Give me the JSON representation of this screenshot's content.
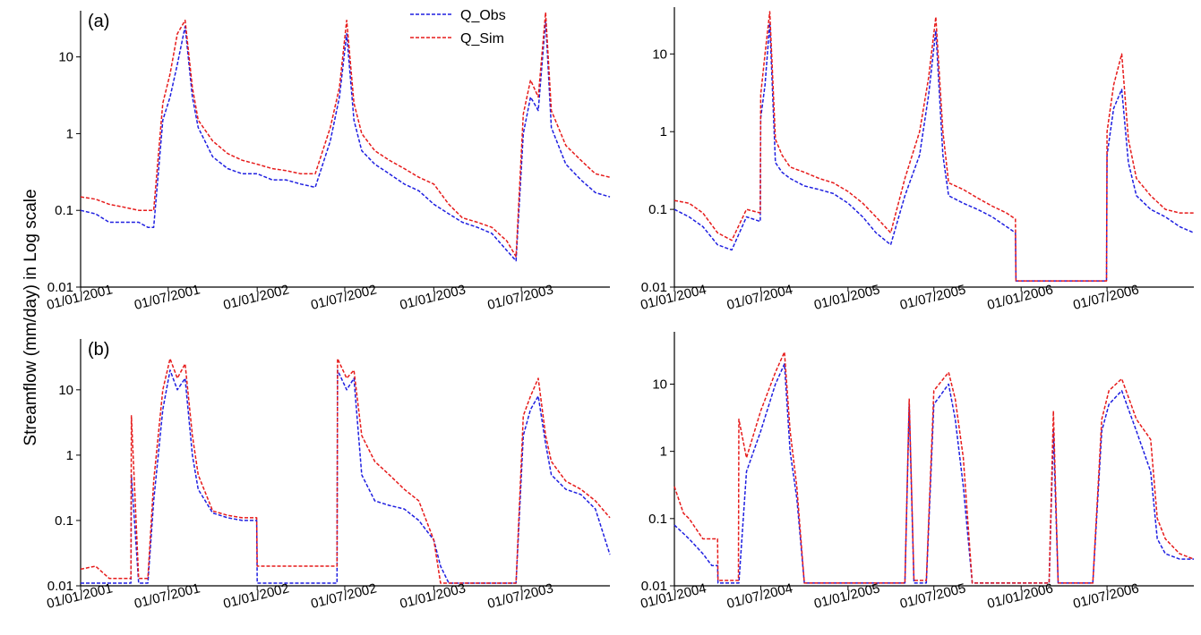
{
  "figure": {
    "ylabel": "Streamflow (mm/day) in Log scale",
    "legend": {
      "placement": "top-center",
      "entries": [
        {
          "name": "Q_Obs",
          "color": "#1f1fe0"
        },
        {
          "name": "Q_Sim",
          "color": "#e61b1b"
        }
      ]
    }
  },
  "chart_data": [
    {
      "type": "line",
      "panel_label": "(a)",
      "yscale": "log",
      "ylim": [
        0.01,
        40
      ],
      "yticks": [
        "0.01",
        "0.1",
        "1",
        "10"
      ],
      "xlim": [
        "2001-01-01",
        "2003-12-31"
      ],
      "xticks": [
        "01/01/2001",
        "01/07/2001",
        "01/01/2002",
        "01/07/2002",
        "01/01/2003",
        "01/07/2003"
      ],
      "x": [
        "2001-01-01",
        "2001-02-01",
        "2001-03-01",
        "2001-04-01",
        "2001-05-01",
        "2001-05-20",
        "2001-06-01",
        "2001-06-20",
        "2001-07-05",
        "2001-07-20",
        "2001-08-05",
        "2001-08-20",
        "2001-09-01",
        "2001-10-01",
        "2001-11-01",
        "2001-12-01",
        "2002-01-01",
        "2002-02-01",
        "2002-03-01",
        "2002-04-01",
        "2002-05-01",
        "2002-06-01",
        "2002-06-20",
        "2002-07-05",
        "2002-07-20",
        "2002-08-05",
        "2002-09-01",
        "2002-10-01",
        "2002-11-01",
        "2002-12-01",
        "2003-01-01",
        "2003-02-01",
        "2003-03-01",
        "2003-04-01",
        "2003-05-01",
        "2003-06-01",
        "2003-06-20",
        "2003-07-05",
        "2003-07-20",
        "2003-08-05",
        "2003-08-20",
        "2003-09-01",
        "2003-10-01",
        "2003-11-01",
        "2003-12-01",
        "2003-12-31"
      ],
      "series": [
        {
          "name": "Q_Obs",
          "values": [
            0.1,
            0.09,
            0.07,
            0.07,
            0.07,
            0.06,
            0.06,
            1.5,
            3,
            8,
            25,
            3,
            1.2,
            0.5,
            0.35,
            0.3,
            0.3,
            0.25,
            0.25,
            0.22,
            0.2,
            0.8,
            3,
            20,
            1.5,
            0.6,
            0.4,
            0.3,
            0.22,
            0.18,
            0.12,
            0.09,
            0.07,
            0.06,
            0.05,
            0.03,
            0.022,
            1,
            3,
            2,
            30,
            1.2,
            0.4,
            0.25,
            0.17,
            0.15
          ]
        },
        {
          "name": "Q_Sim",
          "values": [
            0.15,
            0.14,
            0.12,
            0.11,
            0.1,
            0.1,
            0.1,
            2.5,
            6,
            20,
            30,
            4,
            1.5,
            0.8,
            0.55,
            0.45,
            0.4,
            0.35,
            0.33,
            0.3,
            0.3,
            1.2,
            4,
            30,
            2.5,
            1.0,
            0.6,
            0.45,
            0.35,
            0.27,
            0.22,
            0.12,
            0.08,
            0.07,
            0.06,
            0.04,
            0.025,
            1.8,
            5,
            3,
            38,
            2.0,
            0.7,
            0.45,
            0.3,
            0.27
          ]
        }
      ]
    },
    {
      "type": "line",
      "yscale": "log",
      "ylim": [
        0.01,
        40
      ],
      "yticks": [
        "0.01",
        "0.1",
        "1",
        "10"
      ],
      "xlim": [
        "2004-01-01",
        "2006-12-31"
      ],
      "xticks": [
        "01/01/2004",
        "01/07/2004",
        "01/01/2005",
        "01/07/2005",
        "01/01/2006",
        "01/07/2006"
      ],
      "x": [
        "2004-01-01",
        "2004-02-01",
        "2004-03-01",
        "2004-04-01",
        "2004-05-01",
        "2004-06-01",
        "2004-06-30",
        "2004-07-01",
        "2004-07-10",
        "2004-07-20",
        "2004-08-01",
        "2004-08-15",
        "2004-09-01",
        "2004-10-01",
        "2004-11-01",
        "2004-12-01",
        "2005-01-01",
        "2005-02-01",
        "2005-03-01",
        "2005-04-01",
        "2005-05-01",
        "2005-06-01",
        "2005-06-20",
        "2005-07-05",
        "2005-07-20",
        "2005-08-01",
        "2005-09-01",
        "2005-10-01",
        "2005-11-01",
        "2005-12-01",
        "2005-12-20",
        "2005-12-21",
        "2006-06-30",
        "2006-07-01",
        "2006-07-15",
        "2006-08-01",
        "2006-08-15",
        "2006-09-01",
        "2006-10-01",
        "2006-11-01",
        "2006-12-01",
        "2006-12-31"
      ],
      "series": [
        {
          "name": "Q_Obs",
          "values": [
            0.1,
            0.08,
            0.06,
            0.035,
            0.03,
            0.08,
            0.07,
            1.5,
            4,
            25,
            0.4,
            0.3,
            0.25,
            0.2,
            0.18,
            0.16,
            0.12,
            0.08,
            0.05,
            0.035,
            0.15,
            0.5,
            3,
            20,
            0.5,
            0.15,
            0.12,
            0.1,
            0.08,
            0.06,
            0.05,
            0.012,
            0.012,
            0.5,
            2.0,
            3.5,
            0.4,
            0.15,
            0.1,
            0.08,
            0.06,
            0.05
          ]
        },
        {
          "name": "Q_Sim",
          "values": [
            0.13,
            0.12,
            0.09,
            0.05,
            0.04,
            0.1,
            0.09,
            3,
            10,
            35,
            0.8,
            0.5,
            0.35,
            0.3,
            0.25,
            0.22,
            0.17,
            0.12,
            0.08,
            0.05,
            0.25,
            1.0,
            5,
            30,
            1.0,
            0.22,
            0.18,
            0.14,
            0.11,
            0.09,
            0.075,
            0.012,
            0.012,
            1.0,
            4,
            10,
            0.8,
            0.25,
            0.15,
            0.1,
            0.09,
            0.09
          ]
        }
      ]
    },
    {
      "type": "line",
      "panel_label": "(b)",
      "yscale": "log",
      "ylim": [
        0.01,
        60
      ],
      "yticks": [
        "0.01",
        "0.1",
        "1",
        "10"
      ],
      "xlim": [
        "2001-01-01",
        "2003-12-31"
      ],
      "xticks": [
        "01/01/2001",
        "01/07/2001",
        "01/01/2002",
        "01/07/2002",
        "01/01/2003",
        "01/07/2003"
      ],
      "x": [
        "2001-01-01",
        "2001-02-01",
        "2001-03-01",
        "2001-04-01",
        "2001-04-15",
        "2001-04-16",
        "2001-05-01",
        "2001-05-20",
        "2001-06-01",
        "2001-06-20",
        "2001-07-05",
        "2001-07-20",
        "2001-08-05",
        "2001-08-20",
        "2001-09-01",
        "2001-10-01",
        "2001-11-01",
        "2001-12-01",
        "2001-12-31",
        "2002-01-01",
        "2002-03-01",
        "2002-06-15",
        "2002-06-16",
        "2002-07-05",
        "2002-07-20",
        "2002-08-05",
        "2002-09-01",
        "2002-10-01",
        "2002-11-01",
        "2002-12-01",
        "2003-01-01",
        "2003-01-15",
        "2003-02-01",
        "2003-06-20",
        "2003-07-05",
        "2003-07-20",
        "2003-08-05",
        "2003-08-20",
        "2003-09-01",
        "2003-10-01",
        "2003-11-01",
        "2003-12-01",
        "2003-12-31"
      ],
      "series": [
        {
          "name": "Q_Obs",
          "values": [
            0.011,
            0.011,
            0.011,
            0.011,
            0.011,
            0.5,
            0.011,
            0.011,
            0.2,
            5,
            20,
            10,
            15,
            1,
            0.3,
            0.13,
            0.11,
            0.1,
            0.1,
            0.011,
            0.011,
            0.011,
            20,
            10,
            15,
            0.5,
            0.2,
            0.17,
            0.15,
            0.1,
            0.05,
            0.02,
            0.011,
            0.011,
            2,
            5,
            8,
            1.5,
            0.5,
            0.3,
            0.25,
            0.15,
            0.03
          ]
        },
        {
          "name": "Q_Sim",
          "values": [
            0.018,
            0.02,
            0.013,
            0.013,
            0.013,
            4,
            0.013,
            0.013,
            0.4,
            10,
            30,
            15,
            25,
            2,
            0.5,
            0.14,
            0.12,
            0.11,
            0.11,
            0.02,
            0.02,
            0.02,
            30,
            15,
            20,
            2,
            0.8,
            0.5,
            0.3,
            0.2,
            0.05,
            0.011,
            0.011,
            0.011,
            4,
            8,
            15,
            2,
            0.8,
            0.4,
            0.3,
            0.2,
            0.11
          ]
        }
      ]
    },
    {
      "type": "line",
      "yscale": "log",
      "ylim": [
        0.01,
        60
      ],
      "yticks": [
        "0.01",
        "0.1",
        "1",
        "10"
      ],
      "xlim": [
        "2004-01-01",
        "2006-12-31"
      ],
      "xticks": [
        "01/01/2004",
        "01/07/2004",
        "01/01/2005",
        "01/07/2005",
        "01/01/2006",
        "01/07/2006"
      ],
      "x": [
        "2004-01-01",
        "2004-01-20",
        "2004-02-01",
        "2004-03-01",
        "2004-03-20",
        "2004-04-01",
        "2004-04-02",
        "2004-05-01",
        "2004-05-15",
        "2004-05-16",
        "2004-06-01",
        "2004-07-01",
        "2004-08-01",
        "2004-08-20",
        "2004-09-01",
        "2004-09-15",
        "2004-10-01",
        "2004-12-01",
        "2005-03-01",
        "2005-05-01",
        "2005-05-10",
        "2005-05-20",
        "2005-06-01",
        "2005-06-15",
        "2005-07-01",
        "2005-08-01",
        "2005-08-15",
        "2005-09-01",
        "2005-09-20",
        "2005-10-01",
        "2005-12-01",
        "2006-03-01",
        "2006-03-10",
        "2006-03-20",
        "2006-04-01",
        "2006-05-20",
        "2006-06-01",
        "2006-06-20",
        "2006-07-05",
        "2006-08-01",
        "2006-09-01",
        "2006-10-01",
        "2006-10-15",
        "2006-11-01",
        "2006-12-01",
        "2006-12-31"
      ],
      "series": [
        {
          "name": "Q_Obs",
          "values": [
            0.08,
            0.06,
            0.05,
            0.03,
            0.02,
            0.02,
            0.011,
            0.011,
            0.011,
            0.011,
            0.5,
            2,
            10,
            20,
            1,
            0.2,
            0.011,
            0.011,
            0.011,
            0.011,
            5,
            0.011,
            0.011,
            0.011,
            5,
            10,
            3,
            0.3,
            0.011,
            0.011,
            0.011,
            0.011,
            2,
            0.011,
            0.011,
            0.011,
            0.011,
            2,
            5,
            8,
            2,
            0.5,
            0.05,
            0.03,
            0.025,
            0.025
          ]
        },
        {
          "name": "Q_Sim",
          "values": [
            0.3,
            0.12,
            0.1,
            0.05,
            0.05,
            0.05,
            0.012,
            0.012,
            0.012,
            3,
            0.8,
            4,
            15,
            30,
            2,
            0.3,
            0.011,
            0.011,
            0.011,
            0.011,
            6,
            0.012,
            0.012,
            0.012,
            8,
            15,
            6,
            0.8,
            0.011,
            0.011,
            0.011,
            0.011,
            4,
            0.011,
            0.011,
            0.011,
            0.011,
            3,
            8,
            12,
            3,
            1.5,
            0.1,
            0.05,
            0.03,
            0.025
          ]
        }
      ]
    }
  ]
}
